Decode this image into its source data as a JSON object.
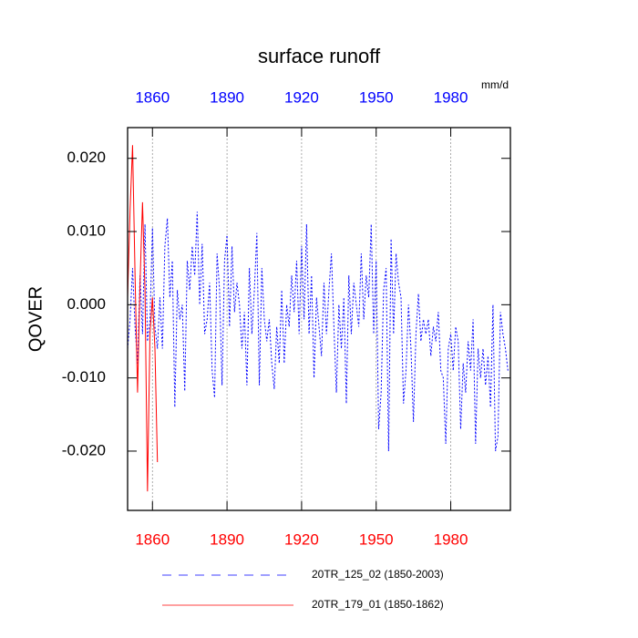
{
  "chart_data": {
    "type": "line",
    "title": "surface runoff",
    "y_label": "QOVER",
    "units": "mm/d",
    "xlim": [
      1850,
      2004
    ],
    "ylim": [
      -0.0281,
      0.0242
    ],
    "xticks": [
      1860,
      1890,
      1920,
      1950,
      1980
    ],
    "yticks": [
      {
        "value": -0.02,
        "label": "-0.020"
      },
      {
        "value": -0.01,
        "label": "-0.010"
      },
      {
        "value": 0,
        "label": "0.000"
      },
      {
        "value": 0.01,
        "label": "0.010"
      },
      {
        "value": 0.02,
        "label": "0.020"
      }
    ],
    "top_tick_color": "#0000ff",
    "bottom_tick_color": "#ff0000",
    "grid": true,
    "series": [
      {
        "name": "20TR_125_02 (1850-2003)",
        "color": "#0000ff",
        "dash": true,
        "x": [
          1850,
          1851,
          1852,
          1853,
          1854,
          1855,
          1856,
          1857,
          1858,
          1859,
          1860,
          1861,
          1862,
          1863,
          1864,
          1865,
          1866,
          1867,
          1868,
          1869,
          1870,
          1871,
          1872,
          1873,
          1874,
          1875,
          1876,
          1877,
          1878,
          1879,
          1880,
          1881,
          1882,
          1883,
          1884,
          1885,
          1886,
          1887,
          1888,
          1889,
          1890,
          1891,
          1892,
          1893,
          1894,
          1895,
          1896,
          1897,
          1898,
          1899,
          1900,
          1901,
          1902,
          1903,
          1904,
          1905,
          1906,
          1907,
          1908,
          1909,
          1910,
          1911,
          1912,
          1913,
          1914,
          1915,
          1916,
          1917,
          1918,
          1919,
          1920,
          1921,
          1922,
          1923,
          1924,
          1925,
          1926,
          1927,
          1928,
          1929,
          1930,
          1931,
          1932,
          1933,
          1934,
          1935,
          1936,
          1937,
          1938,
          1939,
          1940,
          1941,
          1942,
          1943,
          1944,
          1945,
          1946,
          1947,
          1948,
          1949,
          1950,
          1951,
          1952,
          1953,
          1954,
          1955,
          1956,
          1957,
          1958,
          1959,
          1960,
          1961,
          1962,
          1963,
          1964,
          1965,
          1966,
          1967,
          1968,
          1969,
          1970,
          1971,
          1972,
          1973,
          1974,
          1975,
          1976,
          1977,
          1978,
          1979,
          1980,
          1981,
          1982,
          1983,
          1984,
          1985,
          1986,
          1987,
          1988,
          1989,
          1990,
          1991,
          1992,
          1993,
          1994,
          1995,
          1996,
          1997,
          1998,
          1999,
          2000,
          2001,
          2002,
          2003
        ],
        "values": [
          -0.006,
          -0.002,
          0.005,
          -0.003,
          -0.008,
          0.004,
          -0.004,
          0.011,
          -0.005,
          -0.002,
          0.0105,
          -0.003,
          -0.006,
          0.001,
          -0.006,
          0.008,
          0.0118,
          0.001,
          0.006,
          -0.014,
          0.002,
          -0.002,
          0.0,
          -0.0118,
          0.006,
          0.002,
          0.008,
          0.004,
          0.0127,
          0.0,
          0.0083,
          -0.004,
          -0.002,
          0.003,
          -0.009,
          -0.0127,
          0.007,
          0.002,
          -0.011,
          0.006,
          0.0095,
          -0.003,
          0.008,
          -0.001,
          0.003,
          0.0,
          -0.006,
          -0.001,
          -0.011,
          0.005,
          -0.004,
          0.002,
          0.0098,
          -0.011,
          0.005,
          -0.002,
          -0.005,
          -0.002,
          -0.008,
          -0.0115,
          -0.003,
          -0.008,
          0.002,
          -0.008,
          0.0,
          -0.003,
          0.004,
          -0.001,
          0.006,
          -0.004,
          0.008,
          -0.002,
          0.011,
          -0.004,
          0.004,
          -0.01,
          0.001,
          -0.003,
          -0.007,
          0.003,
          -0.004,
          0.002,
          0.007,
          -0.003,
          -0.012,
          0.0,
          -0.006,
          0.001,
          -0.0135,
          0.004,
          -0.004,
          0.003,
          0.0,
          -0.003,
          0.007,
          -0.002,
          0.004,
          0.001,
          0.011,
          -0.004,
          0.006,
          -0.017,
          -0.012,
          0.002,
          0.005,
          -0.02,
          0.009,
          -0.004,
          0.007,
          0.003,
          0.001,
          -0.0135,
          -0.009,
          0.0,
          -0.006,
          -0.016,
          -0.004,
          0.0015,
          -0.005,
          -0.002,
          -0.004,
          -0.002,
          -0.007,
          -0.003,
          -0.005,
          -0.001,
          -0.009,
          -0.01,
          -0.019,
          -0.006,
          -0.004,
          -0.009,
          -0.003,
          -0.005,
          -0.017,
          -0.008,
          -0.012,
          -0.005,
          -0.009,
          -0.002,
          -0.019,
          -0.006,
          -0.01,
          -0.006,
          -0.011,
          -0.007,
          -0.014,
          0.0,
          -0.02,
          -0.018,
          -0.001,
          -0.004,
          -0.006,
          -0.009
        ]
      },
      {
        "name": "20TR_179_01 (1850-1862)",
        "color": "#ff0000",
        "dash": false,
        "x": [
          1850,
          1851,
          1852,
          1853,
          1854,
          1855,
          1856,
          1857,
          1858,
          1859,
          1860,
          1861,
          1862
        ],
        "values": [
          0.001,
          0.013,
          0.0218,
          0.004,
          -0.012,
          0.003,
          0.014,
          0.002,
          -0.0255,
          -0.004,
          0.001,
          -0.006,
          -0.0215
        ]
      }
    ]
  }
}
